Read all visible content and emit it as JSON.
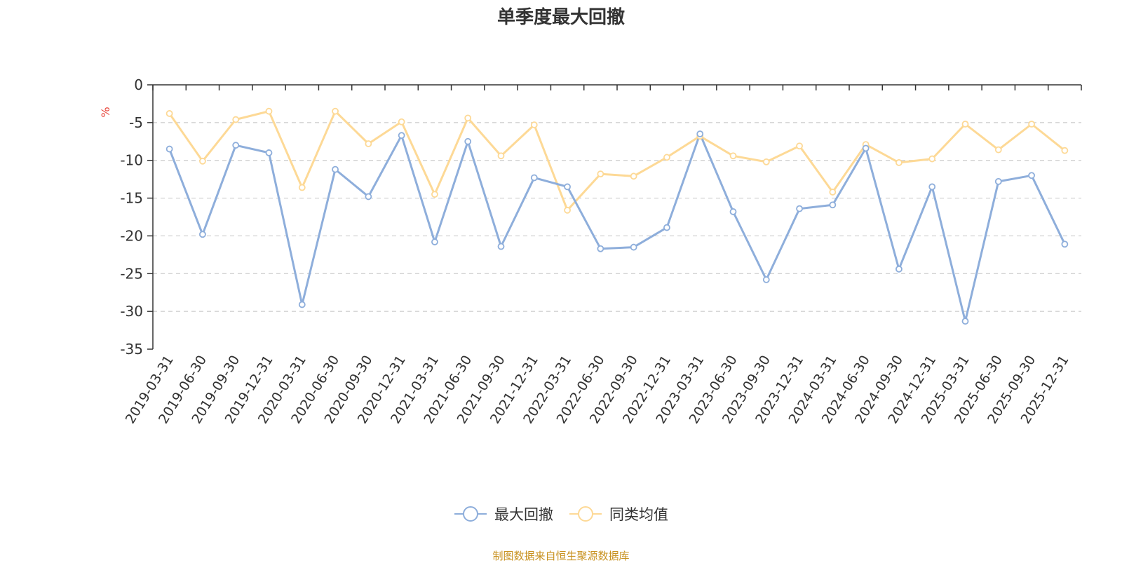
{
  "chart_data": {
    "type": "line",
    "title": "单季度最大回撤",
    "ylabel": "%",
    "xlabel": "",
    "ylim": [
      -35,
      0
    ],
    "yticks": [
      "0",
      "-5",
      "-10",
      "-15",
      "-20",
      "-25",
      "-30",
      "-35"
    ],
    "grid": true,
    "legend_position": "bottom-center",
    "categories": [
      "2019-03-31",
      "2019-06-30",
      "2019-09-30",
      "2019-12-31",
      "2020-03-31",
      "2020-06-30",
      "2020-09-30",
      "2020-12-31",
      "2021-03-31",
      "2021-06-30",
      "2021-09-30",
      "2021-12-31",
      "2022-03-31",
      "2022-06-30",
      "2022-09-30",
      "2022-12-31",
      "2023-03-31",
      "2023-06-30",
      "2023-09-30",
      "2023-12-31",
      "2024-03-31",
      "2024-06-30",
      "2024-09-30",
      "2024-12-31",
      "2025-03-31",
      "2025-06-30",
      "2025-09-30",
      "2025-12-31"
    ],
    "series": [
      {
        "name": "最大回撤",
        "color": "#8eaedb",
        "values": [
          -8.5,
          -19.8,
          -8.0,
          -9.0,
          -29.1,
          -11.2,
          -14.8,
          -6.7,
          -20.8,
          -7.5,
          -21.4,
          -12.3,
          -13.5,
          -21.7,
          -21.5,
          -18.9,
          -6.5,
          -16.8,
          -25.8,
          -16.4,
          -15.9,
          -8.4,
          -24.4,
          -13.5,
          -31.3,
          -12.8,
          -12.0,
          -21.1
        ]
      },
      {
        "name": "同类均值",
        "color": "#fdd996",
        "values": [
          -3.8,
          -10.1,
          -4.6,
          -3.5,
          -13.6,
          -3.5,
          -7.8,
          -4.9,
          -14.5,
          -4.4,
          -9.4,
          -5.3,
          -16.6,
          -11.8,
          -12.1,
          -9.6,
          -6.8,
          -9.4,
          -10.2,
          -8.1,
          -14.2,
          -7.9,
          -10.3,
          -9.8,
          -5.2,
          -8.6,
          -5.2,
          -8.7
        ]
      }
    ]
  },
  "legend": {
    "items": [
      {
        "label": "最大回撤",
        "color": "#8eaedb"
      },
      {
        "label": "同类均值",
        "color": "#fdd996"
      }
    ]
  },
  "footer": {
    "source": "制图数据来自恒生聚源数据库"
  }
}
